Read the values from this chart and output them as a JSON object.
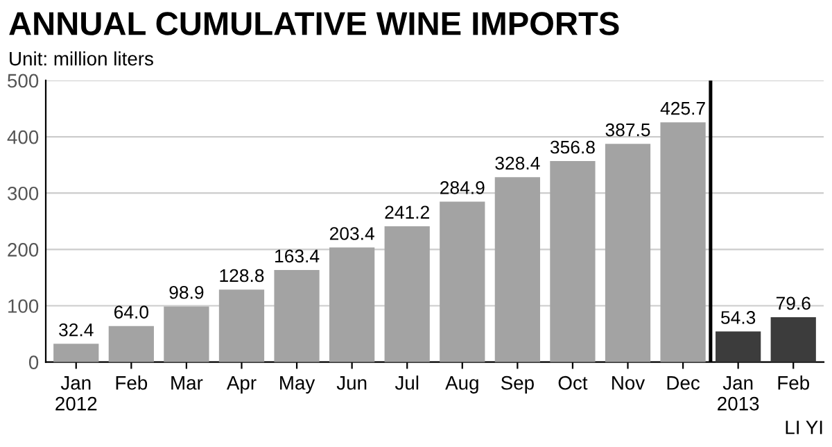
{
  "chart_data": {
    "type": "bar",
    "title": "ANNUAL CUMULATIVE WINE IMPORTS",
    "subtitle": "Unit: million liters",
    "categories": [
      "Jan\n2012",
      "Feb",
      "Mar",
      "Apr",
      "May",
      "Jun",
      "Jul",
      "Aug",
      "Sep",
      "Oct",
      "Nov",
      "Dec",
      "Jan\n2013",
      "Feb"
    ],
    "values": [
      32.4,
      64.0,
      98.9,
      128.8,
      163.4,
      203.4,
      241.2,
      284.9,
      328.4,
      356.8,
      387.5,
      425.7,
      54.3,
      79.6
    ],
    "value_labels": [
      "32.4",
      "64.0",
      "98.9",
      "128.8",
      "163.4",
      "203.4",
      "241.2",
      "284.9",
      "328.4",
      "356.8",
      "387.5",
      "425.7",
      "54.3",
      "79.6"
    ],
    "colors": [
      "#a3a3a3",
      "#a3a3a3",
      "#a3a3a3",
      "#a3a3a3",
      "#a3a3a3",
      "#a3a3a3",
      "#a3a3a3",
      "#a3a3a3",
      "#a3a3a3",
      "#a3a3a3",
      "#a3a3a3",
      "#a3a3a3",
      "#3c3c3c",
      "#3c3c3c"
    ],
    "ylim": [
      0,
      500
    ],
    "yticks": [
      0,
      100,
      200,
      300,
      400,
      500
    ],
    "grid": "y",
    "annotations": [
      "LI YI"
    ]
  }
}
